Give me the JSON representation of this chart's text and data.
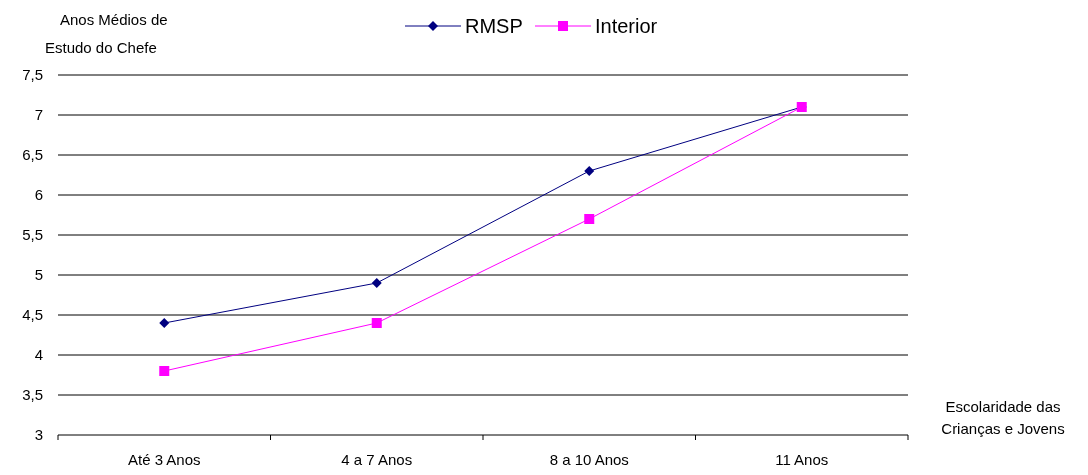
{
  "chart_data": {
    "type": "line",
    "ylabel": "Anos Médios de Estudo do Chefe",
    "xlabel": "Escolaridade das Crianças e Jovens",
    "categories": [
      "Até 3 Anos",
      "4 a 7 Anos",
      "8 a 10 Anos",
      "11 Anos"
    ],
    "series": [
      {
        "name": "RMSP",
        "color": "#000080",
        "marker": "diamond",
        "values": [
          4.4,
          4.9,
          6.3,
          7.1
        ]
      },
      {
        "name": "Interior",
        "color": "#ff00ff",
        "marker": "square",
        "values": [
          3.8,
          4.4,
          5.7,
          7.1
        ]
      }
    ],
    "ylim": [
      3,
      7.5
    ],
    "yticks": [
      3,
      {
        "value": 3.5,
        "label": "3,5"
      },
      4,
      {
        "value": 4.5,
        "label": "4,5"
      },
      5,
      {
        "value": 5.5,
        "label": "5,5"
      },
      6,
      {
        "value": 6.5,
        "label": "6,5"
      },
      7,
      {
        "value": 7.5,
        "label": "7,5"
      }
    ],
    "grid": "y",
    "legend": "top",
    "line_style": "solid"
  }
}
